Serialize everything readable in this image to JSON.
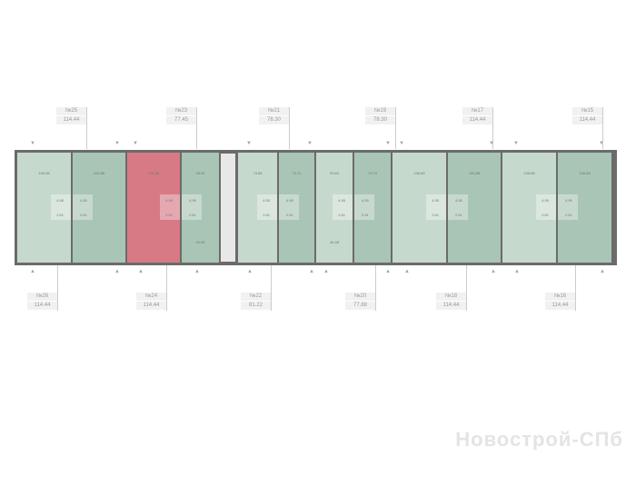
{
  "colors": {
    "light": "#c6d9cd",
    "dark": "#a9c5b5",
    "selected": "#d77a86",
    "corridor": "#e8e8e8",
    "wall": "#6b6b6b"
  },
  "top_labels": [
    {
      "num": "№25",
      "area": "114.44"
    },
    {
      "num": "№23",
      "area": "77.45"
    },
    {
      "num": "№21",
      "area": "78.30"
    },
    {
      "num": "№19",
      "area": "78.30"
    },
    {
      "num": "№17",
      "area": "114.44"
    },
    {
      "num": "№15",
      "area": "114.44"
    }
  ],
  "bottom_labels": [
    {
      "num": "№26",
      "area": "114.44"
    },
    {
      "num": "№24",
      "area": "114.44"
    },
    {
      "num": "№22",
      "area": "81.22"
    },
    {
      "num": "№20",
      "area": "77.88"
    },
    {
      "num": "№18",
      "area": "114.44"
    },
    {
      "num": "№16",
      "area": "114.44"
    }
  ],
  "units": [
    {
      "area": "106.98",
      "extra": "",
      "d1": "4.95",
      "d2": "2.61",
      "tone": "light"
    },
    {
      "area": "106.88",
      "extra": "",
      "d1": "4.95",
      "d2": "2.61",
      "tone": "dark"
    },
    {
      "area": "106.88",
      "extra": "",
      "d1": "4.95",
      "d2": "2.61",
      "tone": "selected"
    },
    {
      "area": "28.94",
      "extra": "40.95",
      "d1": "4.95",
      "d2": "2.61",
      "tone": "dark"
    },
    {
      "area": "73.66",
      "extra": "",
      "d1": "4.95",
      "d2": "2.61",
      "tone": "light"
    },
    {
      "area": "70.74",
      "extra": "",
      "d1": "4.95",
      "d2": "2.61",
      "tone": "dark"
    },
    {
      "area": "29.84",
      "extra": "40.48",
      "d1": "4.95",
      "d2": "2.61",
      "tone": "light"
    },
    {
      "area": "70.74",
      "extra": "",
      "d1": "4.95",
      "d2": "2.61",
      "tone": "dark"
    },
    {
      "area": "106.88",
      "extra": "",
      "d1": "4.95",
      "d2": "2.61",
      "tone": "light"
    },
    {
      "area": "106.88",
      "extra": "",
      "d1": "4.95",
      "d2": "2.61",
      "tone": "dark"
    },
    {
      "area": "106.88",
      "extra": "",
      "d1": "4.95",
      "d2": "2.61",
      "tone": "light"
    },
    {
      "area": "106.88",
      "extra": "",
      "d1": "4.95",
      "d2": "2.61",
      "tone": "dark"
    }
  ],
  "watermark": "Новострой-СПб"
}
